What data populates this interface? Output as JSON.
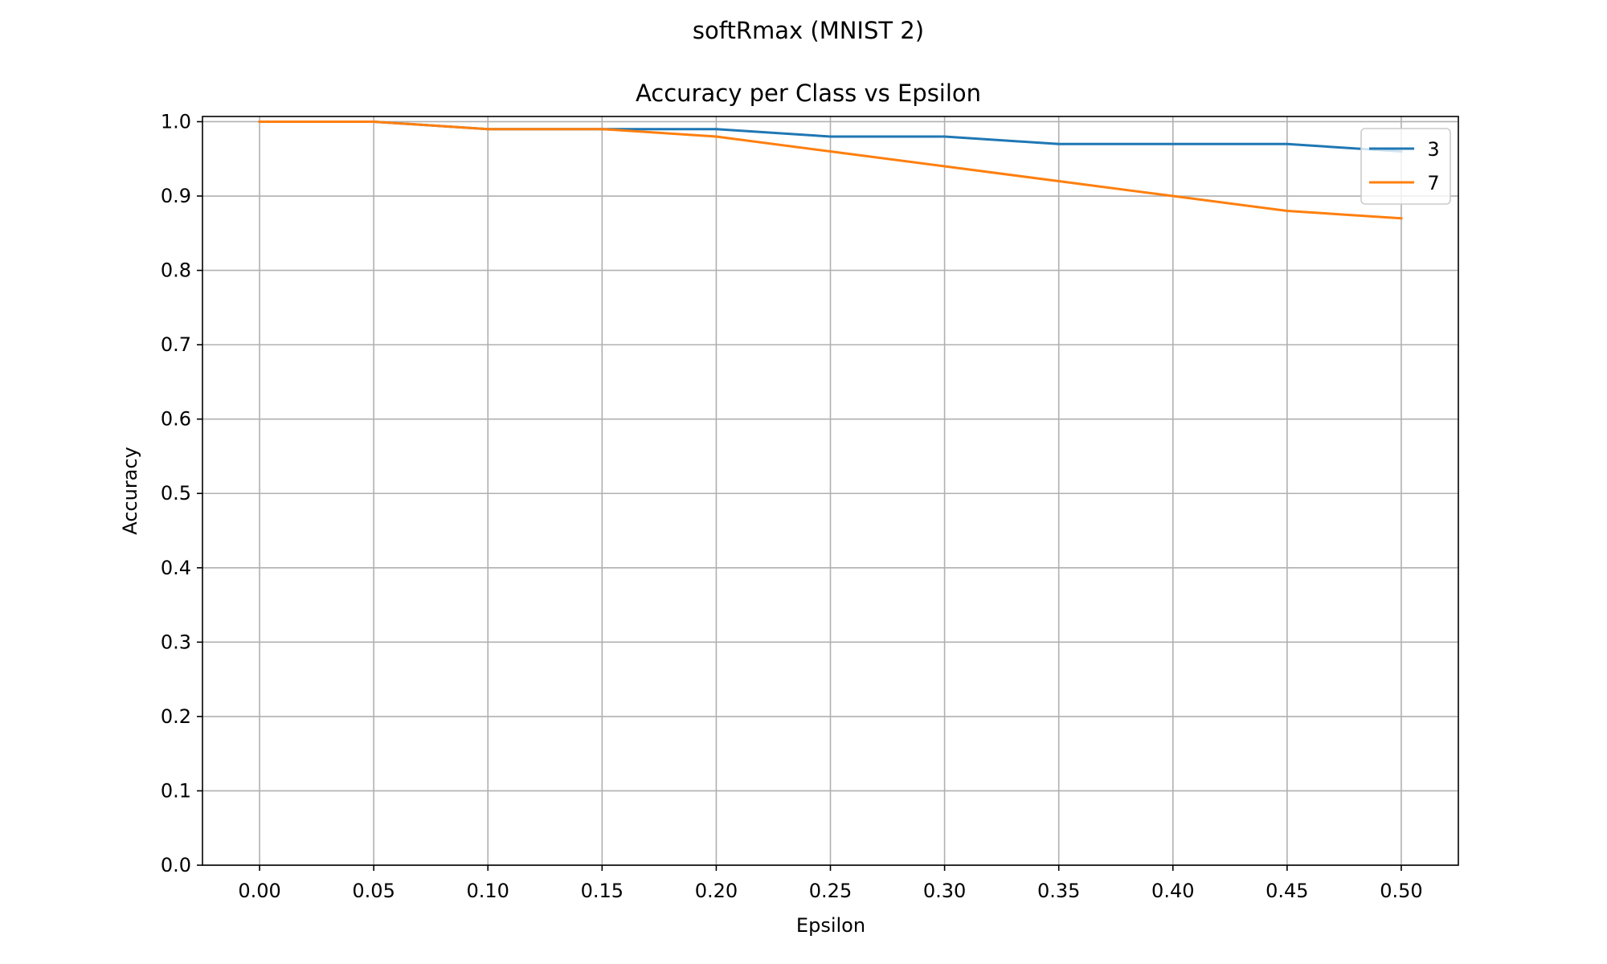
{
  "figure": {
    "suptitle": "softRmax (MNIST 2)"
  },
  "chart_data": {
    "type": "line",
    "title": "Accuracy per Class vs Epsilon",
    "xlabel": "Epsilon",
    "ylabel": "Accuracy",
    "x": [
      0.0,
      0.05,
      0.1,
      0.15,
      0.2,
      0.25,
      0.3,
      0.35,
      0.4,
      0.45,
      0.5
    ],
    "x_tick_labels": [
      "0.00",
      "0.05",
      "0.10",
      "0.15",
      "0.20",
      "0.25",
      "0.30",
      "0.35",
      "0.40",
      "0.45",
      "0.50"
    ],
    "y_ticks": [
      0.0,
      0.1,
      0.2,
      0.3,
      0.4,
      0.5,
      0.6,
      0.7,
      0.8,
      0.9,
      1.0
    ],
    "y_tick_labels": [
      "0.0",
      "0.1",
      "0.2",
      "0.3",
      "0.4",
      "0.5",
      "0.6",
      "0.7",
      "0.8",
      "0.9",
      "1.0"
    ],
    "xlim": [
      -0.025,
      0.525
    ],
    "ylim": [
      0.0,
      1.007
    ],
    "grid": true,
    "legend_position": "top-right",
    "series": [
      {
        "name": "3",
        "color": "#1f77b4",
        "values": [
          1.0,
          1.0,
          0.99,
          0.99,
          0.99,
          0.98,
          0.98,
          0.97,
          0.97,
          0.97,
          0.96
        ]
      },
      {
        "name": "7",
        "color": "#ff7f0e",
        "values": [
          1.0,
          1.0,
          0.99,
          0.99,
          0.98,
          0.96,
          0.94,
          0.92,
          0.9,
          0.88,
          0.87
        ]
      }
    ]
  }
}
